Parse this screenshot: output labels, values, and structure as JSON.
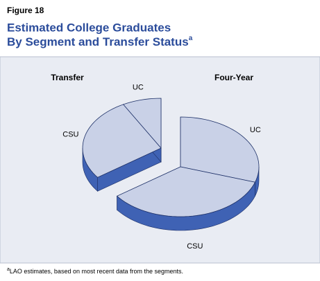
{
  "header": {
    "figure_label": "Figure 18",
    "title_line1": "Estimated College Graduates",
    "title_line2": "By Segment and Transfer Status",
    "title_note_mark": "a"
  },
  "chart_data": [
    {
      "type": "pie",
      "title": "Transfer",
      "categories": [
        "UC",
        "CSU"
      ],
      "values": [
        8,
        27
      ],
      "color": "#c9d1e7",
      "side_color": "#3f62b4"
    },
    {
      "type": "pie",
      "title": "Four-Year",
      "categories": [
        "UC",
        "CSU"
      ],
      "values": [
        30,
        35
      ],
      "color": "#c9d1e7",
      "side_color": "#3f62b4"
    }
  ],
  "footnote": {
    "mark": "a",
    "text": "LAO estimates, based on most recent data from the segments."
  }
}
